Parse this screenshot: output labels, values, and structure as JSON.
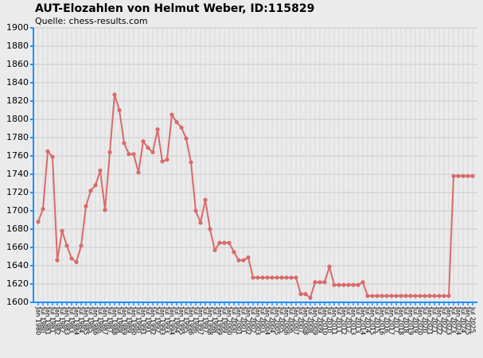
{
  "chart_data": {
    "type": "line",
    "title": "AUT-Elozahlen von Helmut Weber, ID:115829",
    "subtitle": "Quelle: chess-results.com",
    "categories": [
      "Jan 1980",
      "Jul 1980",
      "Jan 1981",
      "Jul 1981",
      "Jan 1982",
      "Jul 1982",
      "Jan 1983",
      "Jul 1983",
      "Jan 1984",
      "Jul 1984",
      "Jan 1985",
      "Jul 1985",
      "Jan 1986",
      "Jul 1986",
      "Jan 1987",
      "Jul 1987",
      "Jan 1988",
      "Jul 1988",
      "Jan 1989",
      "Jul 1989",
      "Jan 1990",
      "Jul 1990",
      "Jan 1991",
      "Jul 1991",
      "Jan 1992",
      "Jul 1992",
      "Jan 1993",
      "Jul 1993",
      "Jan 1994",
      "Jul 1994",
      "Jan 1995",
      "Jul 1995",
      "Jan 1996",
      "Jul 1996",
      "Jan 1997",
      "Jul 1997",
      "Jan 1998",
      "Jul 1998",
      "Jan 1999",
      "Jul 1999",
      "Jan 2000",
      "Jul 2000",
      "Jan 2001",
      "Jul 2001",
      "Jan 2002",
      "Jul 2002",
      "Jan 2003",
      "Jul 2003",
      "Jan 2004",
      "Jul 2004",
      "Jan 2005",
      "Jul 2005",
      "Jan 2006",
      "Jul 2006",
      "Jan 2007",
      "Jul 2007",
      "Jan 2008",
      "Jul 2008",
      "Jan 2009",
      "Jul 2009",
      "Jan 2010",
      "Jul 2010",
      "Jan 2011",
      "Jul 2011",
      "Jan 2012",
      "Jul 2012",
      "Jan 2013",
      "Jul 2013",
      "Jan 2014",
      "Jul 2014",
      "Jan 2015",
      "Jul 2015",
      "Jan 2016",
      "Jul 2016",
      "Jan 2017",
      "Jul 2017",
      "Jan 2018",
      "Jul 2018",
      "Jan 2019",
      "Jul 2019",
      "Jan 2020",
      "Jul 2020",
      "Jan 2021",
      "Jul 2021",
      "Jan 2022",
      "Jul 2022",
      "Jan 2023",
      "Jul 2023",
      "Jan 2024",
      "Jul 2024",
      "Jan 2025",
      "Jul 2025"
    ],
    "series": [
      {
        "name": "Elo",
        "color": "#d96a6a",
        "values": [
          1688,
          1702,
          1765,
          1759,
          1646,
          1678,
          1662,
          1648,
          1644,
          1662,
          1705,
          1722,
          1728,
          1744,
          1701,
          1764,
          1827,
          1810,
          1774,
          1762,
          1762,
          1742,
          1776,
          1769,
          1764,
          1789,
          1754,
          1756,
          1805,
          1797,
          1791,
          1779,
          1753,
          1700,
          1687,
          1712,
          1680,
          1657,
          1665,
          1665,
          1665,
          1655,
          1646,
          1646,
          1649,
          1627,
          1627,
          1627,
          1627,
          1627,
          1627,
          1627,
          1627,
          1627,
          1627,
          1609,
          1609,
          1605,
          1622,
          1622,
          1622,
          1639,
          1619,
          1619,
          1619,
          1619,
          1619,
          1619,
          1622,
          1607,
          1607,
          1607,
          1607,
          1607,
          1607,
          1607,
          1607,
          1607,
          1607,
          1607,
          1607,
          1607,
          1607,
          1607,
          1607,
          1607,
          1607,
          1738,
          1738,
          1738,
          1738,
          1738
        ]
      }
    ],
    "ylim": [
      1600,
      1900
    ],
    "yticks": [
      1600,
      1620,
      1640,
      1660,
      1680,
      1700,
      1720,
      1740,
      1760,
      1780,
      1800,
      1820,
      1840,
      1860,
      1880,
      1900
    ],
    "grid": true
  }
}
